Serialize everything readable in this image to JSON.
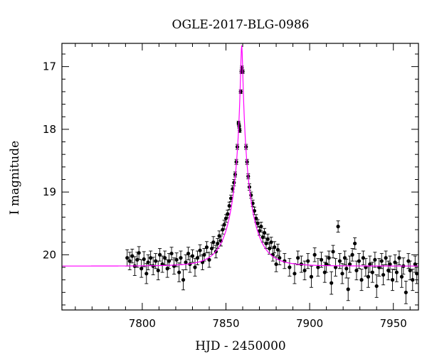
{
  "chart_data": {
    "type": "scatter",
    "title": "OGLE-2017-BLG-0986",
    "xlabel": "HJD - 2450000",
    "ylabel": "I magnitude",
    "xlim": [
      7752,
      7965
    ],
    "ylim": [
      20.88,
      16.63
    ],
    "y_inverted": true,
    "x_ticks": [
      7800,
      7850,
      7900,
      7950
    ],
    "y_ticks": [
      17,
      18,
      19,
      20
    ],
    "grid": false,
    "colors": {
      "data": "#000000",
      "model": "#ff00ff"
    },
    "model": {
      "name": "",
      "baseline_mag": 20.18,
      "peak_mag": 16.66,
      "t0": 7859.4,
      "tE_display": 12.0,
      "u0_display": 0.048
    },
    "series": [
      {
        "name": "",
        "points": [
          [
            7791.0,
            20.05,
            0.13
          ],
          [
            7792.5,
            20.1,
            0.14
          ],
          [
            7794.0,
            20.02,
            0.11
          ],
          [
            7795.5,
            20.18,
            0.15
          ],
          [
            7797.0,
            20.08,
            0.12
          ],
          [
            7798.0,
            19.97,
            0.1
          ],
          [
            7799.5,
            20.22,
            0.14
          ],
          [
            7801.0,
            20.07,
            0.12
          ],
          [
            7802.5,
            20.3,
            0.16
          ],
          [
            7803.5,
            20.12,
            0.12
          ],
          [
            7805.0,
            20.05,
            0.11
          ],
          [
            7806.5,
            20.18,
            0.14
          ],
          [
            7808.0,
            20.1,
            0.12
          ],
          [
            7809.5,
            20.25,
            0.15
          ],
          [
            7810.5,
            20.0,
            0.1
          ],
          [
            7812.0,
            20.15,
            0.13
          ],
          [
            7813.5,
            20.05,
            0.11
          ],
          [
            7815.0,
            20.22,
            0.14
          ],
          [
            7816.0,
            20.1,
            0.12
          ],
          [
            7817.5,
            19.98,
            0.1
          ],
          [
            7819.0,
            20.18,
            0.13
          ],
          [
            7820.5,
            20.08,
            0.11
          ],
          [
            7822.0,
            20.28,
            0.15
          ],
          [
            7823.0,
            20.05,
            0.11
          ],
          [
            7824.5,
            20.4,
            0.16
          ],
          [
            7826.0,
            20.12,
            0.12
          ],
          [
            7827.5,
            19.98,
            0.1
          ],
          [
            7828.5,
            20.15,
            0.13
          ],
          [
            7830.0,
            20.02,
            0.1
          ],
          [
            7831.5,
            20.2,
            0.14
          ],
          [
            7833.0,
            20.05,
            0.11
          ],
          [
            7834.5,
            19.93,
            0.09
          ],
          [
            7836.0,
            20.12,
            0.12
          ],
          [
            7837.0,
            20.0,
            0.1
          ],
          [
            7838.5,
            19.88,
            0.09
          ],
          [
            7840.0,
            20.08,
            0.12
          ],
          [
            7841.5,
            19.9,
            0.09
          ],
          [
            7842.5,
            19.8,
            0.09
          ],
          [
            7844.0,
            19.95,
            0.1
          ],
          [
            7845.0,
            19.82,
            0.08
          ],
          [
            7846.0,
            19.7,
            0.08
          ],
          [
            7847.0,
            19.78,
            0.08
          ],
          [
            7848.0,
            19.6,
            0.07
          ],
          [
            7849.0,
            19.52,
            0.07
          ],
          [
            7850.0,
            19.42,
            0.06
          ],
          [
            7851.0,
            19.35,
            0.06
          ],
          [
            7852.0,
            19.22,
            0.06
          ],
          [
            7853.0,
            19.1,
            0.05
          ],
          [
            7854.0,
            18.95,
            0.05
          ],
          [
            7854.8,
            18.85,
            0.05
          ],
          [
            7855.5,
            18.72,
            0.04
          ],
          [
            7856.2,
            18.52,
            0.04
          ],
          [
            7856.8,
            18.28,
            0.04
          ],
          [
            7857.5,
            17.9,
            0.03
          ],
          [
            7857.9,
            17.95,
            0.03
          ],
          [
            7858.2,
            18.02,
            0.03
          ],
          [
            7858.8,
            17.4,
            0.03
          ],
          [
            7859.2,
            17.08,
            0.03
          ],
          [
            7859.5,
            17.02,
            0.03
          ],
          [
            7860.0,
            17.08,
            0.03
          ],
          [
            7862.0,
            18.28,
            0.04
          ],
          [
            7862.6,
            18.52,
            0.04
          ],
          [
            7863.3,
            18.75,
            0.04
          ],
          [
            7864.0,
            18.92,
            0.05
          ],
          [
            7865.0,
            19.05,
            0.05
          ],
          [
            7866.0,
            19.18,
            0.05
          ],
          [
            7867.0,
            19.3,
            0.06
          ],
          [
            7868.0,
            19.42,
            0.06
          ],
          [
            7869.0,
            19.5,
            0.06
          ],
          [
            7870.0,
            19.62,
            0.07
          ],
          [
            7871.0,
            19.55,
            0.07
          ],
          [
            7872.0,
            19.72,
            0.08
          ],
          [
            7873.0,
            19.65,
            0.07
          ],
          [
            7874.0,
            19.82,
            0.08
          ],
          [
            7875.0,
            19.75,
            0.08
          ],
          [
            7876.0,
            19.9,
            0.09
          ],
          [
            7877.0,
            19.8,
            0.08
          ],
          [
            7878.0,
            20.0,
            0.1
          ],
          [
            7879.0,
            19.88,
            0.09
          ],
          [
            7880.0,
            20.15,
            0.12
          ],
          [
            7881.0,
            19.92,
            0.09
          ],
          [
            7882.0,
            20.05,
            0.11
          ],
          [
            7885.0,
            20.1,
            0.12
          ],
          [
            7888.0,
            20.2,
            0.14
          ],
          [
            7891.0,
            20.3,
            0.16
          ],
          [
            7893.0,
            20.05,
            0.11
          ],
          [
            7895.0,
            20.15,
            0.13
          ],
          [
            7897.0,
            20.25,
            0.15
          ],
          [
            7899.0,
            20.1,
            0.12
          ],
          [
            7901.0,
            20.35,
            0.17
          ],
          [
            7903.0,
            20.0,
            0.11
          ],
          [
            7905.0,
            20.2,
            0.14
          ],
          [
            7907.0,
            20.08,
            0.12
          ],
          [
            7909.0,
            20.28,
            0.16
          ],
          [
            7910.0,
            20.15,
            0.13
          ],
          [
            7911.5,
            20.05,
            0.11
          ],
          [
            7913.0,
            20.45,
            0.18
          ],
          [
            7914.0,
            19.95,
            0.1
          ],
          [
            7915.5,
            20.2,
            0.14
          ],
          [
            7917.0,
            19.55,
            0.09
          ],
          [
            7918.0,
            20.1,
            0.12
          ],
          [
            7919.5,
            20.3,
            0.16
          ],
          [
            7921.0,
            20.05,
            0.11
          ],
          [
            7922.0,
            20.22,
            0.15
          ],
          [
            7923.0,
            20.55,
            0.18
          ],
          [
            7924.0,
            20.15,
            0.13
          ],
          [
            7925.5,
            20.0,
            0.1
          ],
          [
            7927.0,
            19.82,
            0.09
          ],
          [
            7928.0,
            20.25,
            0.15
          ],
          [
            7929.5,
            20.1,
            0.12
          ],
          [
            7931.0,
            20.4,
            0.17
          ],
          [
            7932.0,
            20.05,
            0.11
          ],
          [
            7933.5,
            20.2,
            0.14
          ],
          [
            7935.0,
            20.35,
            0.17
          ],
          [
            7936.0,
            20.15,
            0.13
          ],
          [
            7937.5,
            20.28,
            0.16
          ],
          [
            7939.0,
            20.08,
            0.12
          ],
          [
            7940.0,
            20.5,
            0.18
          ],
          [
            7941.5,
            20.2,
            0.14
          ],
          [
            7943.0,
            20.1,
            0.12
          ],
          [
            7944.0,
            20.32,
            0.16
          ],
          [
            7945.5,
            20.05,
            0.11
          ],
          [
            7947.0,
            20.25,
            0.15
          ],
          [
            7948.0,
            20.15,
            0.13
          ],
          [
            7949.5,
            20.4,
            0.17
          ],
          [
            7951.0,
            20.12,
            0.12
          ],
          [
            7952.0,
            20.28,
            0.15
          ],
          [
            7953.5,
            20.05,
            0.11
          ],
          [
            7955.0,
            20.35,
            0.17
          ],
          [
            7956.0,
            20.18,
            0.13
          ],
          [
            7957.5,
            20.6,
            0.18
          ],
          [
            7959.0,
            20.1,
            0.12
          ],
          [
            7960.0,
            20.25,
            0.15
          ],
          [
            7961.5,
            20.4,
            0.17
          ],
          [
            7963.0,
            20.15,
            0.13
          ],
          [
            7964.0,
            20.3,
            0.16
          ]
        ]
      }
    ]
  }
}
